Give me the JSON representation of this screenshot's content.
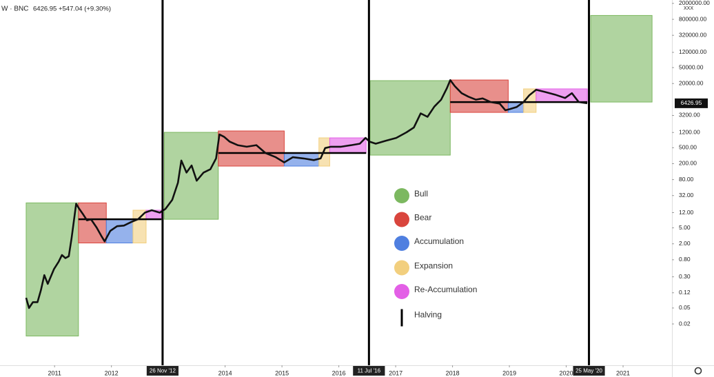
{
  "header": {
    "symbol": "W · BNC",
    "quote": "6426.95 +547.04 (+9.30%)"
  },
  "chart_data": {
    "type": "line",
    "log_scale": true,
    "grid": false,
    "xlim": [
      2010.04,
      2021.86
    ],
    "ylim": [
      0.00186,
      2430000
    ],
    "xticks": [
      2011,
      2012,
      2014,
      2015,
      2016,
      2017,
      2018,
      2019,
      2020,
      2021
    ],
    "yticks": [
      {
        "value": 2000000,
        "label": "2000000.00"
      },
      {
        "value": 800000,
        "label": "800000.00"
      },
      {
        "value": 320000,
        "label": "320000.00"
      },
      {
        "value": 120000,
        "label": "120000.00"
      },
      {
        "value": 50000,
        "label": "50000.00"
      },
      {
        "value": 20000,
        "label": "20000.00"
      },
      {
        "value": 3200,
        "label": "3200.00"
      },
      {
        "value": 1200,
        "label": "1200.00"
      },
      {
        "value": 500,
        "label": "500.00"
      },
      {
        "value": 200,
        "label": "200.00"
      },
      {
        "value": 80,
        "label": "80.00"
      },
      {
        "value": 32,
        "label": "32.00"
      },
      {
        "value": 12,
        "label": "12.00"
      },
      {
        "value": 5,
        "label": "5.00"
      },
      {
        "value": 2,
        "label": "2.00"
      },
      {
        "value": 0.8,
        "label": "0.80"
      },
      {
        "value": 0.3,
        "label": "0.30"
      },
      {
        "value": 0.12,
        "label": "0.12"
      },
      {
        "value": 0.05,
        "label": "0.05"
      },
      {
        "value": 0.02,
        "label": "0.02"
      }
    ],
    "axis_note": "XXX",
    "last_price": 6426.95,
    "phases": [
      {
        "name": "Bull",
        "color": "#7cb860"
      },
      {
        "name": "Bear",
        "color": "#d9453d"
      },
      {
        "name": "Accumulation",
        "color": "#4f7fe0"
      },
      {
        "name": "Expansion",
        "color": "#f2cf7e"
      },
      {
        "name": "Re-Accumulation",
        "color": "#e35fe6"
      }
    ],
    "zones": [
      {
        "phase": 0,
        "x": [
          2010.5,
          2011.42
        ],
        "y": [
          0.01,
          21
        ]
      },
      {
        "phase": 1,
        "x": [
          2011.42,
          2011.91
        ],
        "y": [
          2.1,
          21
        ]
      },
      {
        "phase": 2,
        "x": [
          2011.91,
          2012.38
        ],
        "y": [
          2.1,
          8.2
        ]
      },
      {
        "phase": 3,
        "x": [
          2012.38,
          2012.61
        ],
        "y": [
          2.1,
          13.8
        ]
      },
      {
        "phase": 4,
        "x": [
          2012.61,
          2012.88
        ],
        "y": [
          8.2,
          13.8
        ]
      },
      {
        "phase": 0,
        "x": [
          2012.93,
          2013.88
        ],
        "y": [
          8.2,
          1210
        ]
      },
      {
        "phase": 1,
        "x": [
          2013.88,
          2015.04
        ],
        "y": [
          174,
          1310
        ]
      },
      {
        "phase": 2,
        "x": [
          2015.04,
          2015.65
        ],
        "y": [
          174,
          369
        ]
      },
      {
        "phase": 3,
        "x": [
          2015.65,
          2015.84
        ],
        "y": [
          174,
          881
        ]
      },
      {
        "phase": 4,
        "x": [
          2015.84,
          2016.48
        ],
        "y": [
          369,
          881
        ]
      },
      {
        "phase": 0,
        "x": [
          2016.55,
          2017.96
        ],
        "y": [
          327,
          23600
        ]
      },
      {
        "phase": 1,
        "x": [
          2017.96,
          2018.98
        ],
        "y": [
          3810,
          24500
        ]
      },
      {
        "phase": 2,
        "x": [
          2018.98,
          2019.25
        ],
        "y": [
          3810,
          6900
        ]
      },
      {
        "phase": 3,
        "x": [
          2019.25,
          2019.47
        ],
        "y": [
          3810,
          14700
        ]
      },
      {
        "phase": 4,
        "x": [
          2019.47,
          2020.37
        ],
        "y": [
          6900,
          14700
        ]
      },
      {
        "phase": 0,
        "x": [
          2020.43,
          2021.51
        ],
        "y": [
          6900,
          1000000
        ]
      }
    ],
    "levels": [
      {
        "x": [
          2011.42,
          2012.88
        ],
        "y": 8.2
      },
      {
        "x": [
          2013.88,
          2016.48
        ],
        "y": 369
      },
      {
        "x": [
          2017.96,
          2020.37
        ],
        "y": 6900
      }
    ],
    "halving": {
      "name": "Halving",
      "color": "#000000",
      "dates": [
        {
          "x": 2012.9,
          "label": "26 Nov '12"
        },
        {
          "x": 2016.53,
          "label": "11 Jul '16"
        },
        {
          "x": 2020.4,
          "label": "25 May '20"
        }
      ]
    },
    "series": [
      {
        "color": "#111111",
        "x": [
          2010.5,
          2010.55,
          2010.62,
          2010.7,
          2010.76,
          2010.82,
          2010.88,
          2010.99,
          2011.07,
          2011.13,
          2011.19,
          2011.25,
          2011.3,
          2011.38,
          2011.42,
          2011.5,
          2011.57,
          2011.64,
          2011.74,
          2011.82,
          2011.88,
          2011.98,
          2012.1,
          2012.22,
          2012.35,
          2012.47,
          2012.59,
          2012.71,
          2012.85,
          2012.95,
          2013.07,
          2013.17,
          2013.23,
          2013.32,
          2013.41,
          2013.5,
          2013.62,
          2013.74,
          2013.84,
          2013.9,
          2013.98,
          2014.08,
          2014.22,
          2014.38,
          2014.55,
          2014.71,
          2014.89,
          2015.04,
          2015.19,
          2015.38,
          2015.56,
          2015.68,
          2015.76,
          2015.86,
          2016.04,
          2016.22,
          2016.37,
          2016.47,
          2016.54,
          2016.65,
          2016.83,
          2017.01,
          2017.19,
          2017.32,
          2017.44,
          2017.56,
          2017.68,
          2017.8,
          2017.9,
          2017.96,
          2018.04,
          2018.16,
          2018.28,
          2018.41,
          2018.53,
          2018.67,
          2018.83,
          2018.93,
          2019.01,
          2019.13,
          2019.25,
          2019.35,
          2019.47,
          2019.62,
          2019.8,
          2019.98,
          2020.1,
          2020.22,
          2020.37
        ],
        "values": [
          0.09,
          0.05,
          0.07,
          0.07,
          0.14,
          0.33,
          0.2,
          0.47,
          0.71,
          1.05,
          0.88,
          0.98,
          2.8,
          20,
          16,
          11,
          7.7,
          8.2,
          5.1,
          3.2,
          2.3,
          4.2,
          5.5,
          5.7,
          7,
          8.2,
          12,
          13.8,
          12,
          14.8,
          25,
          67,
          240,
          120,
          180,
          75,
          120,
          145,
          270,
          1070,
          940,
          710,
          580,
          530,
          580,
          369,
          290,
          215,
          290,
          270,
          245,
          270,
          490,
          530,
          530,
          580,
          630,
          880,
          710,
          630,
          750,
          880,
          1210,
          1600,
          3600,
          2950,
          5300,
          7900,
          15300,
          24400,
          17200,
          11500,
          9400,
          7900,
          8500,
          6900,
          6300,
          4300,
          4600,
          5200,
          6900,
          10200,
          14000,
          12400,
          10600,
          8700,
          11500,
          6900,
          6426.95
        ]
      }
    ]
  }
}
